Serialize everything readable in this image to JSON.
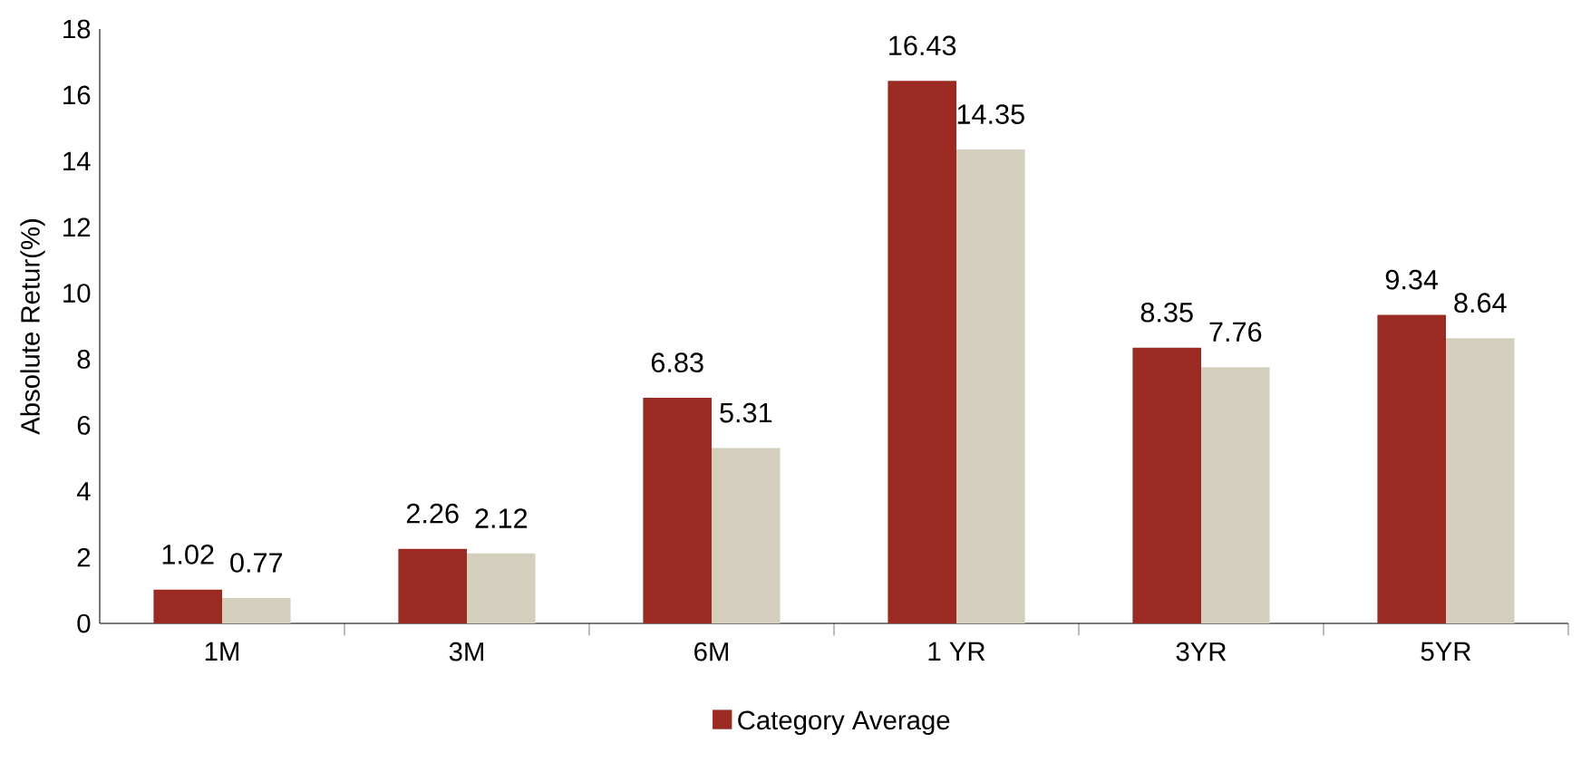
{
  "chart_data": {
    "type": "bar",
    "ylabel": "Absolute Retur(%)",
    "categories": [
      "1M",
      "3M",
      "6M",
      "1 YR",
      "3YR",
      "5YR"
    ],
    "series": [
      {
        "name": "Category Average",
        "color": "#9b2a22",
        "values": [
          1.02,
          2.26,
          6.83,
          16.43,
          8.35,
          9.34
        ]
      },
      {
        "color": "#d4cfbc",
        "values": [
          0.77,
          2.12,
          5.31,
          14.35,
          7.76,
          8.64
        ]
      }
    ],
    "ylim": [
      0,
      18
    ],
    "yticks": [
      0,
      2,
      4,
      6,
      8,
      10,
      12,
      14,
      16,
      18
    ],
    "grid": false,
    "legend": "bottom",
    "data_labels": true
  }
}
